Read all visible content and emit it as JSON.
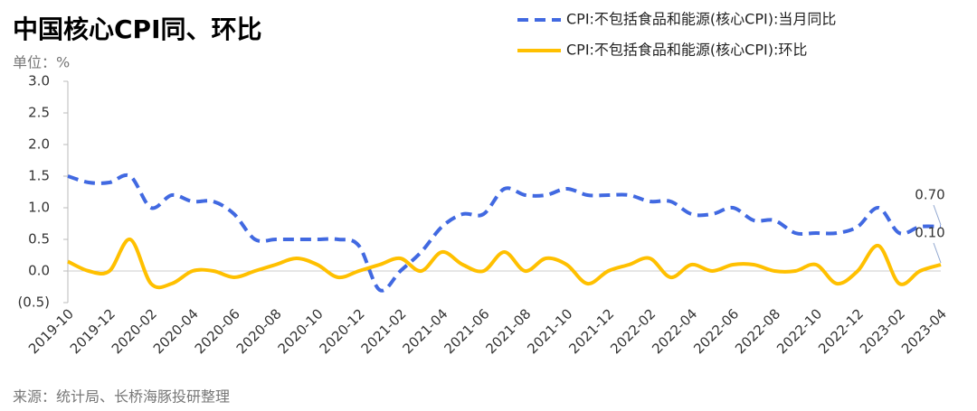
{
  "chart_data": {
    "type": "line",
    "title": "中国核心CPI同、环比",
    "subtitle": "单位：%",
    "source": "来源：统计局、长桥海豚投研整理",
    "categories": [
      "2019-10",
      null,
      "2019-12",
      null,
      "2020-02",
      null,
      "2020-04",
      null,
      "2020-06",
      null,
      "2020-08",
      null,
      "2020-10",
      null,
      "2020-12",
      null,
      "2021-02",
      null,
      "2021-04",
      null,
      "2021-06",
      null,
      "2021-08",
      null,
      "2021-10",
      null,
      "2021-12",
      null,
      "2022-02",
      null,
      "2022-04",
      null,
      "2022-06",
      null,
      "2022-08",
      null,
      "2022-10",
      null,
      "2022-12",
      null,
      "2023-02",
      null,
      "2023-04"
    ],
    "series": [
      {
        "name": "CPI:不包括食品和能源(核心CPI):当月同比",
        "color": "#4169e1",
        "dash": true,
        "values": [
          1.5,
          1.4,
          1.4,
          1.5,
          1.0,
          1.2,
          1.1,
          1.1,
          0.9,
          0.5,
          0.5,
          0.5,
          0.5,
          0.5,
          0.4,
          -0.3,
          0.0,
          0.3,
          0.7,
          0.9,
          0.9,
          1.3,
          1.2,
          1.2,
          1.3,
          1.2,
          1.2,
          1.2,
          1.1,
          1.1,
          0.9,
          0.9,
          1.0,
          0.8,
          0.8,
          0.6,
          0.6,
          0.6,
          0.7,
          1.0,
          0.6,
          0.7,
          0.7
        ],
        "value_labels": [
          null,
          null,
          null,
          null,
          null,
          null,
          null,
          null,
          null,
          null,
          null,
          null,
          null,
          null,
          null,
          null,
          null,
          null,
          null,
          null,
          null,
          null,
          null,
          null,
          null,
          null,
          null,
          null,
          null,
          null,
          null,
          null,
          null,
          null,
          null,
          null,
          null,
          null,
          null,
          null,
          null,
          null,
          "0.70"
        ]
      },
      {
        "name": "CPI:不包括食品和能源(核心CPI):环比",
        "color": "#ffc000",
        "dash": false,
        "values": [
          0.15,
          0.0,
          0.0,
          0.5,
          -0.2,
          -0.2,
          0.0,
          0.0,
          -0.1,
          0.0,
          0.1,
          0.2,
          0.1,
          -0.1,
          0.0,
          0.1,
          0.2,
          0.0,
          0.3,
          0.1,
          0.0,
          0.3,
          0.0,
          0.2,
          0.1,
          -0.2,
          0.0,
          0.1,
          0.2,
          -0.1,
          0.1,
          0.0,
          0.1,
          0.1,
          0.0,
          0.0,
          0.1,
          -0.2,
          0.0,
          0.4,
          -0.2,
          0.0,
          0.1
        ],
        "value_labels": [
          null,
          null,
          null,
          null,
          null,
          null,
          null,
          null,
          null,
          null,
          null,
          null,
          null,
          null,
          null,
          null,
          null,
          null,
          null,
          null,
          null,
          null,
          null,
          null,
          null,
          null,
          null,
          null,
          null,
          null,
          null,
          null,
          null,
          null,
          null,
          null,
          null,
          null,
          null,
          null,
          null,
          null,
          "0.10"
        ]
      }
    ],
    "ylim": [
      -0.5,
      3.0
    ],
    "yticks": [
      {
        "value": 3.0,
        "label": "3.0"
      },
      {
        "value": 2.5,
        "label": "2.5"
      },
      {
        "value": 2.0,
        "label": "2.0"
      },
      {
        "value": 1.5,
        "label": "1.5"
      },
      {
        "value": 1.0,
        "label": "1.0"
      },
      {
        "value": 0.5,
        "label": "0.5"
      },
      {
        "value": 0.0,
        "label": "0.0"
      },
      {
        "value": -0.5,
        "label": "(0.5)"
      }
    ],
    "grid": false,
    "legend": "top-right"
  }
}
